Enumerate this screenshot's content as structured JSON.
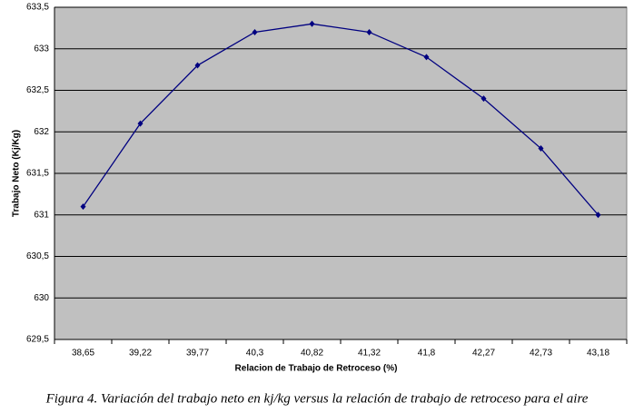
{
  "chart_data": {
    "type": "line",
    "xlabel": "Relacion de Trabajo de Retroceso (%)",
    "ylabel": "Trabajo Neto (Kj/Kg)",
    "caption": "Figura 4. Variación del trabajo neto en kj/kg versus la relación de trabajo de retroceso  para  el aire",
    "categories": [
      "38,65",
      "39,22",
      "39,77",
      "40,3",
      "40,82",
      "41,32",
      "41,8",
      "42,27",
      "42,73",
      "43,18"
    ],
    "values": [
      631.1,
      632.1,
      632.8,
      633.2,
      633.3,
      633.2,
      632.9,
      632.4,
      631.8,
      631.0
    ],
    "color": "#000080",
    "ylim": [
      629.5,
      633.5
    ],
    "yticks": [
      {
        "value": 629.5,
        "label": "629,5"
      },
      {
        "value": 630,
        "label": "630"
      },
      {
        "value": 630.5,
        "label": "630,5"
      },
      {
        "value": 631,
        "label": "631"
      },
      {
        "value": 631.5,
        "label": "631,5"
      },
      {
        "value": 632,
        "label": "632"
      },
      {
        "value": 632.5,
        "label": "632,5"
      },
      {
        "value": 633,
        "label": "633"
      },
      {
        "value": 633.5,
        "label": "633,5"
      }
    ],
    "grid": true
  }
}
